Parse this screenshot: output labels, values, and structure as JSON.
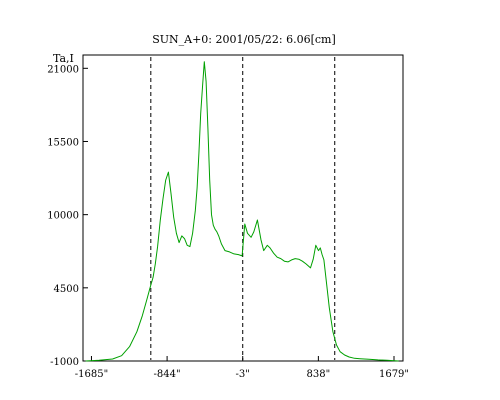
{
  "chart_data": {
    "type": "line",
    "title": "SUN_A+0: 2001/05/22: 6.06[cm]",
    "ylabel": "Ta,I",
    "xlabel": "",
    "grid": false,
    "legend": "none",
    "xlim": [
      -1779,
      1779
    ],
    "ylim": [
      -1000,
      22000
    ],
    "x_ticks": [
      {
        "value": -1685,
        "label": "-1685\""
      },
      {
        "value": -844,
        "label": "-844\""
      },
      {
        "value": -3,
        "label": "-3\""
      },
      {
        "value": 838,
        "label": "838\""
      },
      {
        "value": 1679,
        "label": "1679\""
      }
    ],
    "y_ticks": [
      {
        "value": -1000,
        "label": "-1000"
      },
      {
        "value": 4500,
        "label": "4500"
      },
      {
        "value": 10000,
        "label": "10000"
      },
      {
        "value": 15500,
        "label": "15500"
      },
      {
        "value": 21000,
        "label": "21000"
      }
    ],
    "reference_lines_x": [
      -1025,
      -3,
      1020
    ],
    "series": [
      {
        "color": "#00a000",
        "x": [
          -1750,
          -1600,
          -1450,
          -1350,
          -1260,
          -1180,
          -1120,
          -1070,
          -1030,
          -1000,
          -975,
          -950,
          -920,
          -890,
          -860,
          -830,
          -800,
          -770,
          -740,
          -710,
          -680,
          -650,
          -620,
          -590,
          -560,
          -530,
          -510,
          -490,
          -470,
          -450,
          -430,
          -410,
          -390,
          -370,
          -350,
          -330,
          -310,
          -290,
          -270,
          -240,
          -200,
          -150,
          -100,
          -50,
          -10,
          20,
          50,
          90,
          120,
          160,
          200,
          230,
          270,
          300,
          340,
          380,
          420,
          460,
          500,
          540,
          580,
          620,
          660,
          700,
          750,
          780,
          810,
          840,
          860,
          880,
          900,
          930,
          960,
          1000,
          1040,
          1080,
          1130,
          1180,
          1240,
          1300,
          1400,
          1500,
          1600,
          1730
        ],
        "y": [
          -1000,
          -950,
          -850,
          -600,
          100,
          1200,
          2400,
          3600,
          4600,
          5300,
          6300,
          7600,
          9600,
          11200,
          12600,
          13200,
          11600,
          9800,
          8600,
          7900,
          8400,
          8200,
          7700,
          7600,
          8600,
          10300,
          12000,
          14600,
          17600,
          19600,
          21500,
          20000,
          16500,
          12600,
          10000,
          9200,
          8900,
          8700,
          8400,
          7800,
          7300,
          7200,
          7050,
          7000,
          6900,
          9300,
          8600,
          8300,
          8700,
          9600,
          8100,
          7300,
          7700,
          7500,
          7100,
          6800,
          6700,
          6500,
          6450,
          6600,
          6700,
          6650,
          6500,
          6300,
          6000,
          6650,
          7700,
          7300,
          7500,
          7000,
          6600,
          4800,
          3000,
          1200,
          200,
          -300,
          -550,
          -700,
          -800,
          -830,
          -870,
          -920,
          -950,
          -1000
        ]
      }
    ]
  }
}
